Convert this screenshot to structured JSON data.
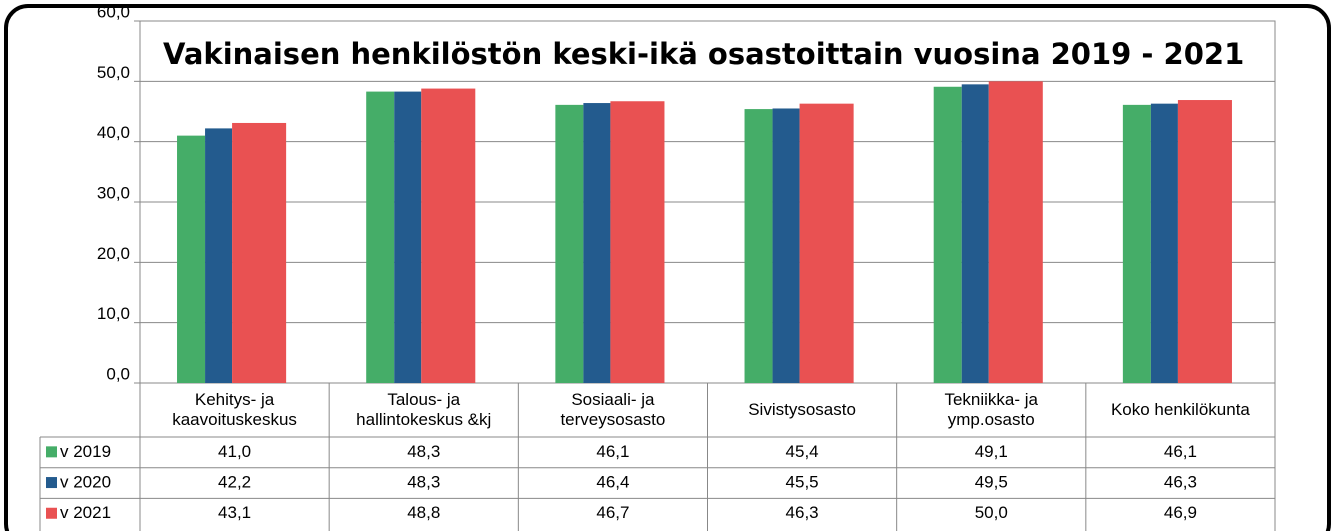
{
  "chart_data": {
    "type": "bar",
    "title": "Vakinaisen henkilöstön keski-ikä osastoittain vuosina 2019 - 2021",
    "categories": [
      "Kehitys- ja\nkaavoituskeskus",
      "Talous- ja\nhallintokeskus &kj",
      "Sosiaali- ja\nterveysosasto",
      "Sivistysosasto",
      "Tekniikka- ja\nymp.osasto",
      "Koko henkilökunta"
    ],
    "series": [
      {
        "name": "v 2019",
        "color": "#45ad68",
        "values": [
          41.0,
          48.3,
          46.1,
          45.4,
          49.1,
          46.1
        ],
        "value_labels": [
          "41,0",
          "48,3",
          "46,1",
          "45,4",
          "49,1",
          "46,1"
        ]
      },
      {
        "name": "v 2020",
        "color": "#235b8e",
        "values": [
          42.2,
          48.3,
          46.4,
          45.5,
          49.5,
          46.3
        ],
        "value_labels": [
          "42,2",
          "48,3",
          "46,4",
          "45,5",
          "49,5",
          "46,3"
        ]
      },
      {
        "name": "v 2021",
        "color": "#e95152",
        "values": [
          43.1,
          48.8,
          46.7,
          46.3,
          50.0,
          46.9
        ],
        "value_labels": [
          "43,1",
          "48,8",
          "46,7",
          "46,3",
          "50,0",
          "46,9"
        ]
      }
    ],
    "ylim": [
      0,
      60
    ],
    "yticks": [
      {
        "value": 0,
        "label": "0,0"
      },
      {
        "value": 10,
        "label": "10,0"
      },
      {
        "value": 20,
        "label": "20,0"
      },
      {
        "value": 30,
        "label": "30,0"
      },
      {
        "value": 40,
        "label": "40,0"
      },
      {
        "value": 50,
        "label": "50,0"
      },
      {
        "value": 60,
        "label": "60,0"
      }
    ],
    "grid": true
  }
}
